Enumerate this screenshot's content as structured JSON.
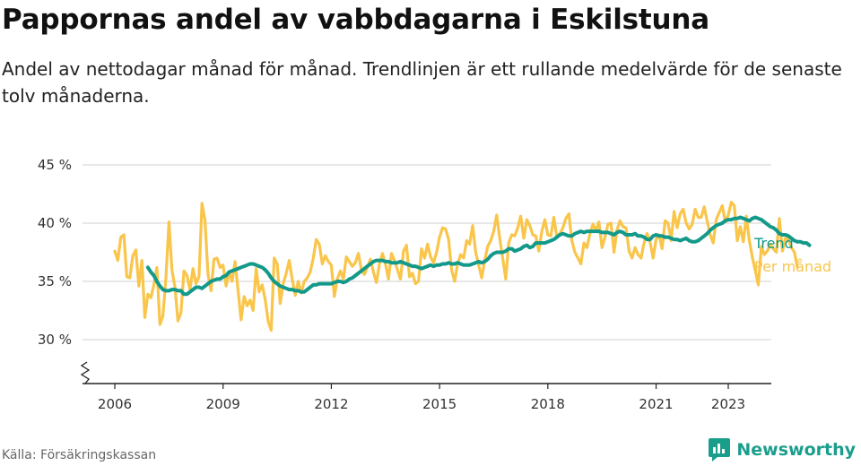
{
  "header": {
    "title": "Pappornas andel av vabbdagarna i Eskilstuna",
    "subtitle": "Andel av nettodagar månad för månad. Trendlinjen är ett rullande medelvärde för de senaste tolv månaderna."
  },
  "footer": {
    "source": "Källa: Försäkringskassan",
    "brand": "Newsworthy"
  },
  "colors": {
    "monthly": "#f9c54a",
    "trend": "#13998a",
    "grid": "#d9d9d9",
    "axis": "#222222",
    "brand": "#1a9e8c"
  },
  "chart_data": {
    "type": "line",
    "x_axis": {
      "ticks": [
        "2006",
        "2009",
        "2012",
        "2015",
        "2018",
        "2021",
        "2023"
      ],
      "range": [
        "2006-01",
        "2024-01"
      ]
    },
    "y_axis": {
      "ticks": [
        "30 %",
        "35 %",
        "40 %",
        "45 %"
      ],
      "tick_values": [
        30,
        35,
        40,
        45
      ],
      "range": [
        26,
        45
      ]
    },
    "grid": true,
    "axis_break": true,
    "series": [
      {
        "name": "Per månad",
        "start": "2006-01",
        "values": [
          37.6,
          36.8,
          38.8,
          39.0,
          35.4,
          35.3,
          37.2,
          37.7,
          34.6,
          36.8,
          31.9,
          33.9,
          33.6,
          34.7,
          36.2,
          31.3,
          32.0,
          35.3,
          40.1,
          36.0,
          34.5,
          31.6,
          32.3,
          35.9,
          35.5,
          34.3,
          36.1,
          34.8,
          35.4,
          41.7,
          40.2,
          35.6,
          34.2,
          36.9,
          37.0,
          36.2,
          36.4,
          34.6,
          35.8,
          35.0,
          36.7,
          34.2,
          31.7,
          33.7,
          32.9,
          33.4,
          32.5,
          36.1,
          34.1,
          34.7,
          33.5,
          31.6,
          30.8,
          37.0,
          36.5,
          33.1,
          34.8,
          35.7,
          36.8,
          35.2,
          33.8,
          35.0,
          34.0,
          35.0,
          35.3,
          35.8,
          37.0,
          38.6,
          38.2,
          36.5,
          37.2,
          36.7,
          36.4,
          33.7,
          35.2,
          35.9,
          35.2,
          37.1,
          36.7,
          36.3,
          36.6,
          37.4,
          36.0,
          35.6,
          36.2,
          36.9,
          35.8,
          34.9,
          36.5,
          37.4,
          36.5,
          35.2,
          37.4,
          36.8,
          36.0,
          35.2,
          37.6,
          38.1,
          35.4,
          35.7,
          34.8,
          35.0,
          37.8,
          37.0,
          38.2,
          37.1,
          36.6,
          37.5,
          38.8,
          39.6,
          39.5,
          38.6,
          36.0,
          35.0,
          36.5,
          37.3,
          37.0,
          38.5,
          38.2,
          39.8,
          37.5,
          36.4,
          35.3,
          36.8,
          38.0,
          38.5,
          39.3,
          40.7,
          38.7,
          37.0,
          35.2,
          38.3,
          39.0,
          38.9,
          39.6,
          40.6,
          38.7,
          40.3,
          39.8,
          39.0,
          38.9,
          37.6,
          39.3,
          40.3,
          39.0,
          38.9,
          40.5,
          38.8,
          39.1,
          39.6,
          40.4,
          40.8,
          38.5,
          37.5,
          37.0,
          36.5,
          38.3,
          37.9,
          39.1,
          39.9,
          39.4,
          40.1,
          37.9,
          38.8,
          39.9,
          40.0,
          37.5,
          39.4,
          40.2,
          39.7,
          39.6,
          37.6,
          37.0,
          37.9,
          37.3,
          37.0,
          38.3,
          39.1,
          38.4,
          37.0,
          38.6,
          39.0,
          37.8,
          40.2,
          40.0,
          38.5,
          41.0,
          39.6,
          40.8,
          41.2,
          40.0,
          39.5,
          39.9,
          41.2,
          40.5,
          40.5,
          41.4,
          40.2,
          39.0,
          38.3,
          40.3,
          40.9,
          41.5,
          40.1,
          40.7,
          41.8,
          41.5,
          38.5,
          39.7,
          38.4,
          40.6,
          38.5,
          37.1,
          35.9,
          34.7,
          38.0,
          37.3,
          37.6,
          38.2,
          37.8,
          37.5,
          40.4,
          37.6,
          38.7,
          38.6,
          37.9,
          37.5,
          36.2
        ]
      },
      {
        "name": "Trend",
        "start": "2006-12",
        "values": [
          36.2,
          35.8,
          35.5,
          35.0,
          34.6,
          34.3,
          34.2,
          34.2,
          34.3,
          34.3,
          34.2,
          34.2,
          33.9,
          33.9,
          34.1,
          34.3,
          34.5,
          34.5,
          34.4,
          34.6,
          34.8,
          35.0,
          35.1,
          35.2,
          35.2,
          35.4,
          35.5,
          35.8,
          35.9,
          36.0,
          36.1,
          36.2,
          36.3,
          36.4,
          36.5,
          36.5,
          36.4,
          36.3,
          36.2,
          36.0,
          35.7,
          35.3,
          35.0,
          34.8,
          34.6,
          34.5,
          34.4,
          34.3,
          34.3,
          34.2,
          34.2,
          34.1,
          34.1,
          34.3,
          34.5,
          34.7,
          34.7,
          34.8,
          34.8,
          34.8,
          34.8,
          34.8,
          34.9,
          35.0,
          35.0,
          34.9,
          35.0,
          35.2,
          35.3,
          35.5,
          35.7,
          35.9,
          36.1,
          36.3,
          36.5,
          36.7,
          36.8,
          36.8,
          36.8,
          36.7,
          36.7,
          36.6,
          36.6,
          36.6,
          36.7,
          36.6,
          36.5,
          36.4,
          36.3,
          36.3,
          36.2,
          36.1,
          36.2,
          36.3,
          36.4,
          36.3,
          36.4,
          36.4,
          36.5,
          36.5,
          36.6,
          36.5,
          36.5,
          36.6,
          36.5,
          36.4,
          36.4,
          36.4,
          36.5,
          36.6,
          36.7,
          36.6,
          36.7,
          36.9,
          37.2,
          37.4,
          37.5,
          37.5,
          37.5,
          37.6,
          37.8,
          37.8,
          37.6,
          37.7,
          37.8,
          38.0,
          38.1,
          37.9,
          38.0,
          38.3,
          38.3,
          38.3,
          38.3,
          38.4,
          38.5,
          38.6,
          38.8,
          39.0,
          39.1,
          39.0,
          38.9,
          38.9,
          39.1,
          39.2,
          39.3,
          39.2,
          39.3,
          39.3,
          39.3,
          39.3,
          39.3,
          39.2,
          39.2,
          39.2,
          39.1,
          39.0,
          39.2,
          39.3,
          39.2,
          39.0,
          39.0,
          39.0,
          39.1,
          38.9,
          38.9,
          38.8,
          38.6,
          38.6,
          38.9,
          39.0,
          38.9,
          38.9,
          38.8,
          38.8,
          38.7,
          38.6,
          38.6,
          38.5,
          38.6,
          38.7,
          38.5,
          38.4,
          38.4,
          38.5,
          38.7,
          38.9,
          39.1,
          39.4,
          39.6,
          39.8,
          39.9,
          40.0,
          40.2,
          40.3,
          40.3,
          40.4,
          40.4,
          40.5,
          40.4,
          40.3,
          40.2,
          40.4,
          40.5,
          40.4,
          40.3,
          40.1,
          39.9,
          39.7,
          39.6,
          39.4,
          39.1,
          39.0,
          39.0,
          38.9,
          38.7,
          38.5,
          38.4,
          38.4,
          38.3,
          38.3,
          38.1
        ]
      }
    ]
  }
}
